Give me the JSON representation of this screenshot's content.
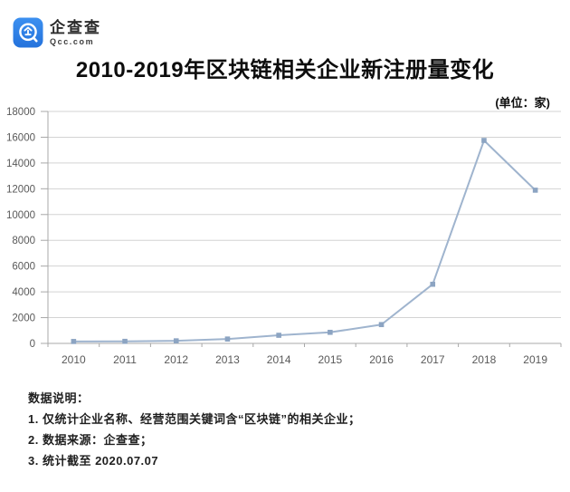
{
  "logo": {
    "name": "企查查",
    "domain": "Qcc.com",
    "brand_color": "#2E82E8"
  },
  "title": "2010-2019年区块链相关企业新注册量变化",
  "unit_label": "(单位：家)",
  "chart_data": {
    "type": "line",
    "title": "2010-2019年区块链相关企业新注册量变化",
    "categories": [
      "2010",
      "2011",
      "2012",
      "2013",
      "2014",
      "2015",
      "2016",
      "2017",
      "2018",
      "2019"
    ],
    "values": [
      150,
      160,
      200,
      340,
      630,
      860,
      1460,
      4590,
      15750,
      11890
    ],
    "xlabel": "",
    "ylabel": "",
    "unit": "家",
    "ylim": [
      0,
      18000
    ],
    "yticks": [
      0,
      2000,
      4000,
      6000,
      8000,
      10000,
      12000,
      14000,
      16000,
      18000
    ],
    "grid": true,
    "legend": "none",
    "colors": {
      "line": "#9FB4CE",
      "marker": "#8CA4C2",
      "gridline": "#D3D3D3",
      "axis": "#A8A8A8",
      "tick_label": "#595959"
    }
  },
  "notes": {
    "heading": "数据说明：",
    "items": [
      "1. 仅统计企业名称、经营范围关键词含“区块链”的相关企业；",
      "2. 数据来源：企查查；",
      "3. 统计截至 2020.07.07"
    ]
  }
}
